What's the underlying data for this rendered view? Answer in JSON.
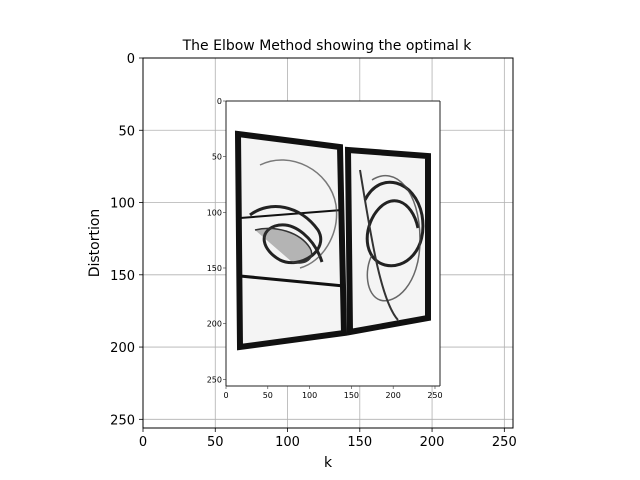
{
  "chart_data": {
    "type": "image",
    "title": "The Elbow Method showing the optimal k",
    "xlabel": "k",
    "ylabel": "Distortion",
    "xlim": [
      0,
      256
    ],
    "ylim": [
      256,
      0
    ],
    "xticks": [
      "0",
      "50",
      "100",
      "150",
      "200",
      "250"
    ],
    "yticks": [
      "0",
      "50",
      "100",
      "150",
      "200",
      "250"
    ],
    "grid": true,
    "inner_image": {
      "xticks": [
        "0",
        "50",
        "100",
        "150",
        "200",
        "250"
      ],
      "yticks": [
        "0",
        "50",
        "100",
        "150",
        "200",
        "250"
      ]
    }
  }
}
